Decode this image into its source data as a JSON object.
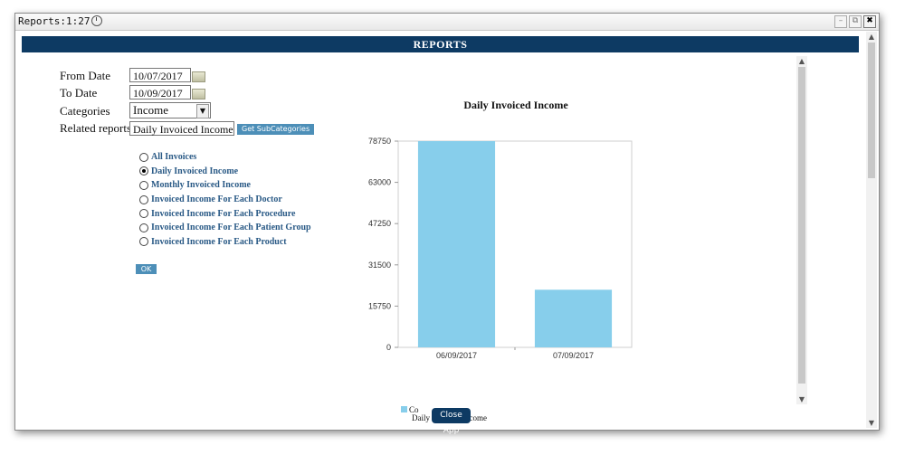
{
  "window": {
    "title": "Reports:1:27",
    "controls": [
      "–",
      "⧉",
      "✖"
    ]
  },
  "banner": {
    "title": "REPORTS"
  },
  "form": {
    "from_date_label": "From Date",
    "from_date_value": "10/07/2017",
    "to_date_label": "To Date",
    "to_date_value": "10/09/2017",
    "categories_label": "Categories",
    "categories_value": "Income",
    "related_label": "Related reports",
    "related_value": "Daily Invoiced Income",
    "get_subcategories_label": "Get SubCategories",
    "ok_label": "OK"
  },
  "reports": [
    {
      "label": "All Invoices",
      "selected": false
    },
    {
      "label": "Daily Invoiced Income",
      "selected": true
    },
    {
      "label": "Monthly Invoiced Income",
      "selected": false
    },
    {
      "label": "Invoiced Income For Each Doctor",
      "selected": false
    },
    {
      "label": "Invoiced Income For Each Procedure",
      "selected": false
    },
    {
      "label": "Invoiced Income For Each Patient Group",
      "selected": false
    },
    {
      "label": "Invoiced Income For Each Product",
      "selected": false
    }
  ],
  "chart_data": {
    "type": "bar",
    "title": "Daily Invoiced Income",
    "categories": [
      "06/09/2017",
      "07/09/2017"
    ],
    "values": [
      78750,
      22000
    ],
    "ylim": [
      0,
      78750
    ],
    "yticks": [
      0,
      15750,
      31500,
      47250,
      63000,
      78750
    ],
    "bar_color": "#87ceeb",
    "legend": {
      "visible_text": "Co",
      "caption": "Daily Invoiced Income"
    }
  },
  "close_app_label": "Close App"
}
